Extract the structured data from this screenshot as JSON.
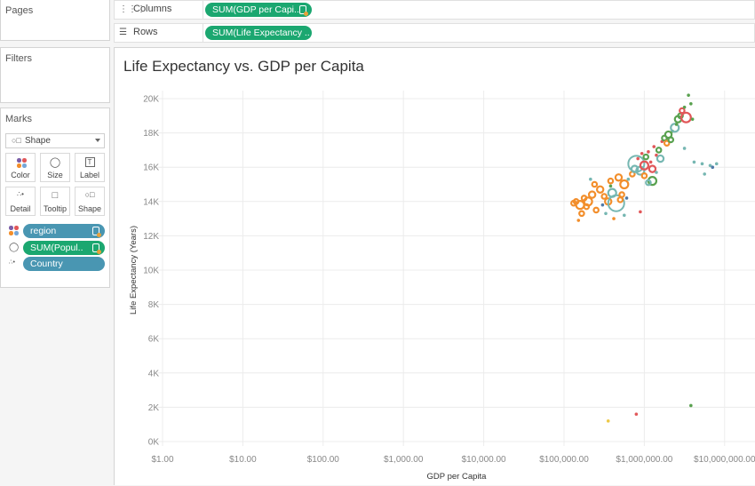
{
  "pages_card": {
    "title": "Pages"
  },
  "filters_card": {
    "title": "Filters"
  },
  "shelves": {
    "columns": {
      "label": "Columns",
      "icon": "columns-icon",
      "pill": "SUM(GDP per Capi.."
    },
    "rows": {
      "label": "Rows",
      "icon": "rows-icon",
      "pill": "SUM(Life Expectancy .."
    }
  },
  "marks_card": {
    "title": "Marks",
    "mark_type": "Shape",
    "buttons": [
      {
        "label": "Color",
        "icon": "color-icon"
      },
      {
        "label": "Size",
        "icon": "size-icon"
      },
      {
        "label": "Label",
        "icon": "label-icon"
      },
      {
        "label": "Detail",
        "icon": "detail-icon"
      },
      {
        "label": "Tooltip",
        "icon": "tooltip-icon"
      },
      {
        "label": "Shape",
        "icon": "shape-icon"
      }
    ],
    "fields": [
      {
        "encoding": "color",
        "label": "region",
        "type": "dimension"
      },
      {
        "encoding": "size",
        "label": "SUM(Popul..",
        "type": "measure"
      },
      {
        "encoding": "detail",
        "label": "Country",
        "type": "dimension"
      }
    ]
  },
  "colors": {
    "pill_measure": "#1ba770",
    "pill_dimension": "#4996b2",
    "orange": "#f28e2b",
    "teal": "#76b7b2",
    "red": "#e15759",
    "green": "#59a14f",
    "blue": "#4e79a7",
    "yellow": "#edc948"
  },
  "chart_data": {
    "type": "scatter",
    "title": "Life Expectancy vs. GDP per Capita",
    "xlabel": "GDP per Capita",
    "ylabel": "Life Expectancy (Years)",
    "x_scale": "log",
    "x_ticks": [
      "$1.00",
      "$10.00",
      "$100.00",
      "$1,000.00",
      "$10,000.00",
      "$100,000.00",
      "$1,000,000.00",
      "$10,000,000.00"
    ],
    "y_ticks": [
      "0K",
      "2K",
      "4K",
      "6K",
      "8K",
      "10K",
      "12K",
      "14K",
      "16K",
      "18K",
      "20K"
    ],
    "xlim": [
      1,
      10000000
    ],
    "ylim": [
      0,
      20000
    ],
    "grid": true,
    "legend": "none",
    "note": "Points sized by SUM(Population), colored by region, one mark per Country. Approximate positions [log10(GDP), lifeExp, region, size].",
    "points": [
      [
        5.55,
        1200,
        "yellow",
        2
      ],
      [
        5.9,
        1600,
        "red",
        2
      ],
      [
        6.58,
        2100,
        "green",
        2
      ],
      [
        5.15,
        14000,
        "orange",
        3
      ],
      [
        5.12,
        13900,
        "orange",
        3
      ],
      [
        5.2,
        13800,
        "orange",
        5
      ],
      [
        5.25,
        14200,
        "orange",
        3
      ],
      [
        5.3,
        14000,
        "orange",
        5
      ],
      [
        5.28,
        13700,
        "orange",
        3
      ],
      [
        5.35,
        14400,
        "orange",
        4
      ],
      [
        5.22,
        13300,
        "orange",
        3
      ],
      [
        5.18,
        12900,
        "orange",
        2
      ],
      [
        5.4,
        13500,
        "orange",
        3
      ],
      [
        5.45,
        14700,
        "orange",
        4
      ],
      [
        5.38,
        15000,
        "orange",
        3
      ],
      [
        5.33,
        15300,
        "teal",
        2
      ],
      [
        5.5,
        14300,
        "orange",
        3
      ],
      [
        5.55,
        14000,
        "orange",
        4
      ],
      [
        5.48,
        13800,
        "blue",
        2
      ],
      [
        5.52,
        13300,
        "teal",
        2
      ],
      [
        5.58,
        15200,
        "orange",
        3
      ],
      [
        5.6,
        14500,
        "teal",
        5
      ],
      [
        5.65,
        13900,
        "teal",
        10
      ],
      [
        5.7,
        14100,
        "orange",
        3
      ],
      [
        5.75,
        15000,
        "orange",
        5
      ],
      [
        5.68,
        15400,
        "orange",
        4
      ],
      [
        5.78,
        14200,
        "blue",
        2
      ],
      [
        5.62,
        13000,
        "orange",
        2
      ],
      [
        5.58,
        14900,
        "green",
        2
      ],
      [
        5.72,
        14400,
        "orange",
        3
      ],
      [
        5.8,
        15300,
        "teal",
        2
      ],
      [
        5.85,
        15600,
        "orange",
        3
      ],
      [
        5.88,
        15900,
        "teal",
        4
      ],
      [
        5.9,
        16200,
        "teal",
        10
      ],
      [
        5.95,
        15800,
        "teal",
        5
      ],
      [
        5.92,
        16500,
        "red",
        2
      ],
      [
        5.97,
        16800,
        "red",
        2
      ],
      [
        6.0,
        16100,
        "red",
        5
      ],
      [
        6.02,
        16600,
        "green",
        3
      ],
      [
        6.05,
        16900,
        "red",
        2
      ],
      [
        6.08,
        16300,
        "red",
        2
      ],
      [
        6.1,
        15900,
        "red",
        4
      ],
      [
        6.12,
        17200,
        "red",
        2
      ],
      [
        6.15,
        16700,
        "red",
        2
      ],
      [
        6.18,
        17000,
        "green",
        3
      ],
      [
        6.2,
        16500,
        "teal",
        4
      ],
      [
        6.22,
        17500,
        "red",
        2
      ],
      [
        6.25,
        17700,
        "green",
        3
      ],
      [
        6.28,
        17400,
        "orange",
        3
      ],
      [
        6.3,
        17900,
        "green",
        4
      ],
      [
        6.33,
        17600,
        "green",
        3
      ],
      [
        6.35,
        18100,
        "green",
        2
      ],
      [
        6.38,
        18300,
        "teal",
        5
      ],
      [
        6.4,
        18500,
        "green",
        2
      ],
      [
        6.42,
        18800,
        "green",
        4
      ],
      [
        6.45,
        19000,
        "green",
        3
      ],
      [
        6.47,
        19300,
        "red",
        3
      ],
      [
        6.5,
        19500,
        "green",
        2
      ],
      [
        6.52,
        18900,
        "red",
        6
      ],
      [
        6.55,
        20200,
        "green",
        2
      ],
      [
        6.58,
        19700,
        "green",
        2
      ],
      [
        6.6,
        18800,
        "green",
        2
      ],
      [
        6.1,
        15200,
        "green",
        5
      ],
      [
        6.05,
        15100,
        "teal",
        3
      ],
      [
        6.0,
        15500,
        "orange",
        3
      ],
      [
        6.15,
        15700,
        "teal",
        2
      ],
      [
        6.5,
        17100,
        "teal",
        2
      ],
      [
        6.62,
        16300,
        "teal",
        2
      ],
      [
        6.72,
        16200,
        "teal",
        2
      ],
      [
        6.82,
        16100,
        "teal",
        2
      ],
      [
        6.9,
        16200,
        "teal",
        2
      ],
      [
        6.85,
        16000,
        "blue",
        2
      ],
      [
        6.75,
        15600,
        "teal",
        2
      ],
      [
        5.75,
        13200,
        "teal",
        2
      ],
      [
        5.95,
        13400,
        "red",
        2
      ]
    ]
  }
}
